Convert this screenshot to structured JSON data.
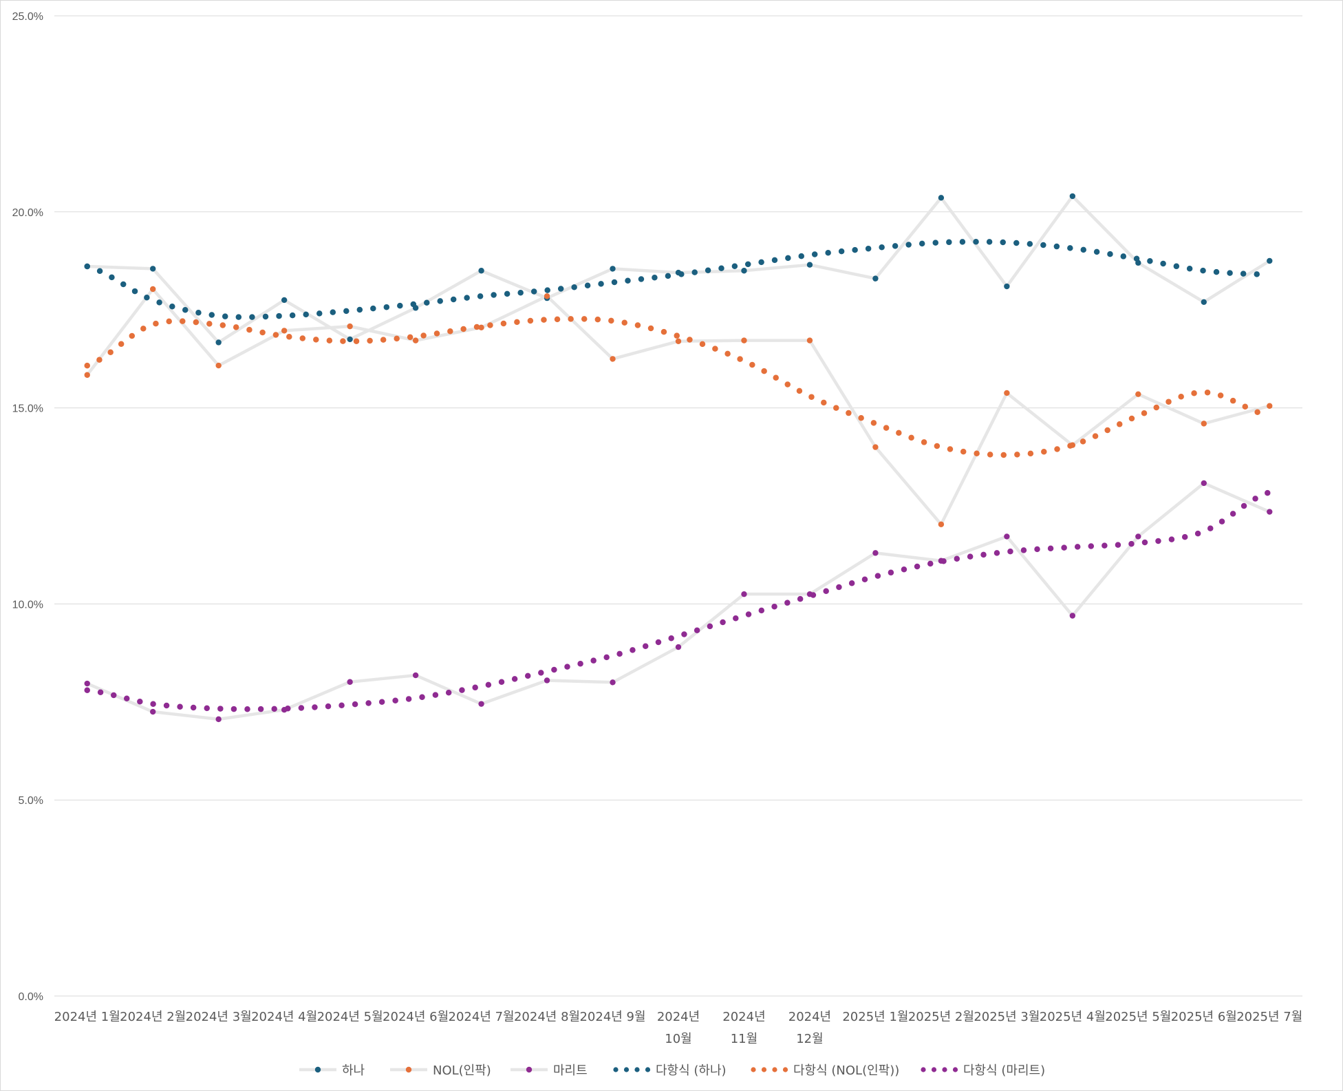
{
  "chart_data": {
    "type": "line",
    "title": "",
    "xlabel": "",
    "ylabel": "",
    "ylim": [
      0,
      0.25
    ],
    "y_ticks": [
      "0.0%",
      "5.0%",
      "10.0%",
      "15.0%",
      "20.0%",
      "25.0%"
    ],
    "grid": true,
    "legend_position": "bottom",
    "categories": [
      [
        "2024년 1월"
      ],
      [
        "2024년 2월"
      ],
      [
        "2024년 3월"
      ],
      [
        "2024년 4월"
      ],
      [
        "2024년 5월"
      ],
      [
        "2024년 6월"
      ],
      [
        "2024년 7월"
      ],
      [
        "2024년 8월"
      ],
      [
        "2024년 9월"
      ],
      [
        "2024년",
        "10월"
      ],
      [
        "2024년",
        "11월"
      ],
      [
        "2024년",
        "12월"
      ],
      [
        "2025년 1월"
      ],
      [
        "2025년 2월"
      ],
      [
        "2025년 3월"
      ],
      [
        "2025년 4월"
      ],
      [
        "2025년 5월"
      ],
      [
        "2025년 6월"
      ],
      [
        "2025년 7월"
      ]
    ],
    "series": [
      {
        "name": "하나",
        "color": "#1b5f7f",
        "line_color": "#e6e6e6",
        "values": [
          0.1861,
          0.1855,
          0.1667,
          0.1775,
          0.1675,
          0.1755,
          0.185,
          0.178,
          0.1855,
          0.1845,
          0.185,
          0.1865,
          0.183,
          0.2036,
          0.181,
          0.204,
          0.187,
          0.177,
          0.1875
        ]
      },
      {
        "name": "NOL(인팍)",
        "color": "#e5703a",
        "line_color": "#e6e6e6",
        "values": [
          0.1584,
          0.1803,
          0.1608,
          0.1697,
          0.1708,
          0.1672,
          0.1705,
          0.1785,
          0.1625,
          0.167,
          0.1672,
          0.1672,
          0.14,
          0.1203,
          0.1538,
          0.1405,
          0.1535,
          0.146,
          0.1505
        ]
      },
      {
        "name": "마리트",
        "color": "#8f2b92",
        "line_color": "#e6e6e6",
        "values": [
          0.0797,
          0.0725,
          0.0706,
          0.073,
          0.0801,
          0.0818,
          0.0745,
          0.0805,
          0.08,
          0.089,
          0.1025,
          0.1025,
          0.113,
          0.111,
          0.1172,
          0.097,
          0.1172,
          0.1308,
          0.1235
        ]
      }
    ],
    "trendlines": [
      {
        "name": "다항식 (하나)",
        "color": "#1b5f7f",
        "values": [
          0.1861,
          0.1775,
          0.1735,
          0.1735,
          0.1748,
          0.1765,
          0.1785,
          0.18,
          0.182,
          0.184,
          0.1865,
          0.189,
          0.1908,
          0.1922,
          0.1922,
          0.1907,
          0.188,
          0.185,
          0.184
        ]
      },
      {
        "name": "다항식 (NOL(인팍))",
        "color": "#e5703a",
        "values": [
          0.1608,
          0.1713,
          0.1712,
          0.1683,
          0.167,
          0.1682,
          0.1708,
          0.1725,
          0.1722,
          0.1683,
          0.162,
          0.153,
          0.146,
          0.14,
          0.138,
          0.1405,
          0.148,
          0.154,
          0.148
        ]
      },
      {
        "name": "다항식 (마리트)",
        "color": "#8f2b92",
        "values": [
          0.078,
          0.0745,
          0.0733,
          0.0733,
          0.0743,
          0.076,
          0.079,
          0.0828,
          0.0868,
          0.0918,
          0.097,
          0.102,
          0.107,
          0.1108,
          0.1133,
          0.1145,
          0.1155,
          0.1185,
          0.1285
        ]
      }
    ]
  }
}
